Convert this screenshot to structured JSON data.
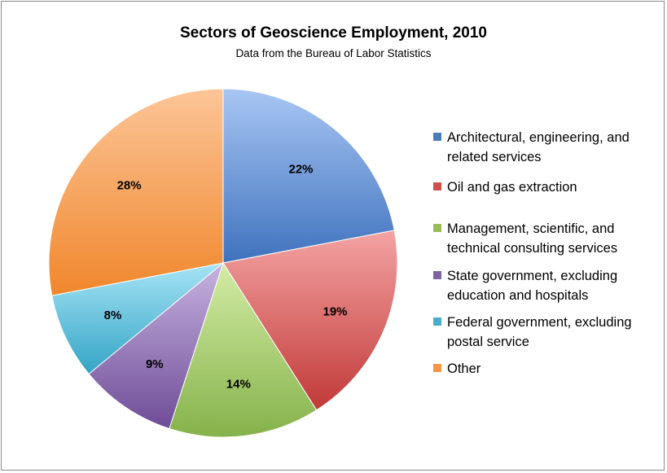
{
  "chart_data": {
    "type": "pie",
    "title": "Sectors of Geoscience Employment, 2010",
    "subtitle": "Data from the Bureau of Labor Statistics",
    "categories": [
      "Architectural, engineering, and related services",
      "Oil and gas extraction",
      "Management, scientific, and technical consulting services",
      "State government, excluding education and hospitals",
      "Federal government, excluding postal service",
      "Other"
    ],
    "legend_lines": [
      [
        "Architectural, engineering, and",
        "related services"
      ],
      [
        "Oil and gas extraction"
      ],
      [
        "Management, scientific, and",
        "technical consulting services"
      ],
      [
        "State government, excluding",
        "education and hospitals"
      ],
      [
        "Federal government, excluding",
        "postal service"
      ],
      [
        "Other"
      ]
    ],
    "values": [
      22,
      19,
      14,
      9,
      8,
      28
    ],
    "data_labels": [
      "22%",
      "19%",
      "14%",
      "9%",
      "8%",
      "28%"
    ],
    "colors": [
      [
        "#a8c6f4",
        "#3f72bd"
      ],
      [
        "#f4a3a3",
        "#c03a38"
      ],
      [
        "#d3eca6",
        "#85b24a"
      ],
      [
        "#c7b3e0",
        "#6e4c97"
      ],
      [
        "#a6e4f5",
        "#34a4c6"
      ],
      [
        "#fcc598",
        "#f0872c"
      ]
    ],
    "legend_colors": [
      "#4a7ebb",
      "#cf4f4d",
      "#9bbb59",
      "#8064a2",
      "#4bacc6",
      "#f79646"
    ],
    "legend_position": "right",
    "start_angle": "12 o'clock",
    "direction": "clockwise"
  }
}
